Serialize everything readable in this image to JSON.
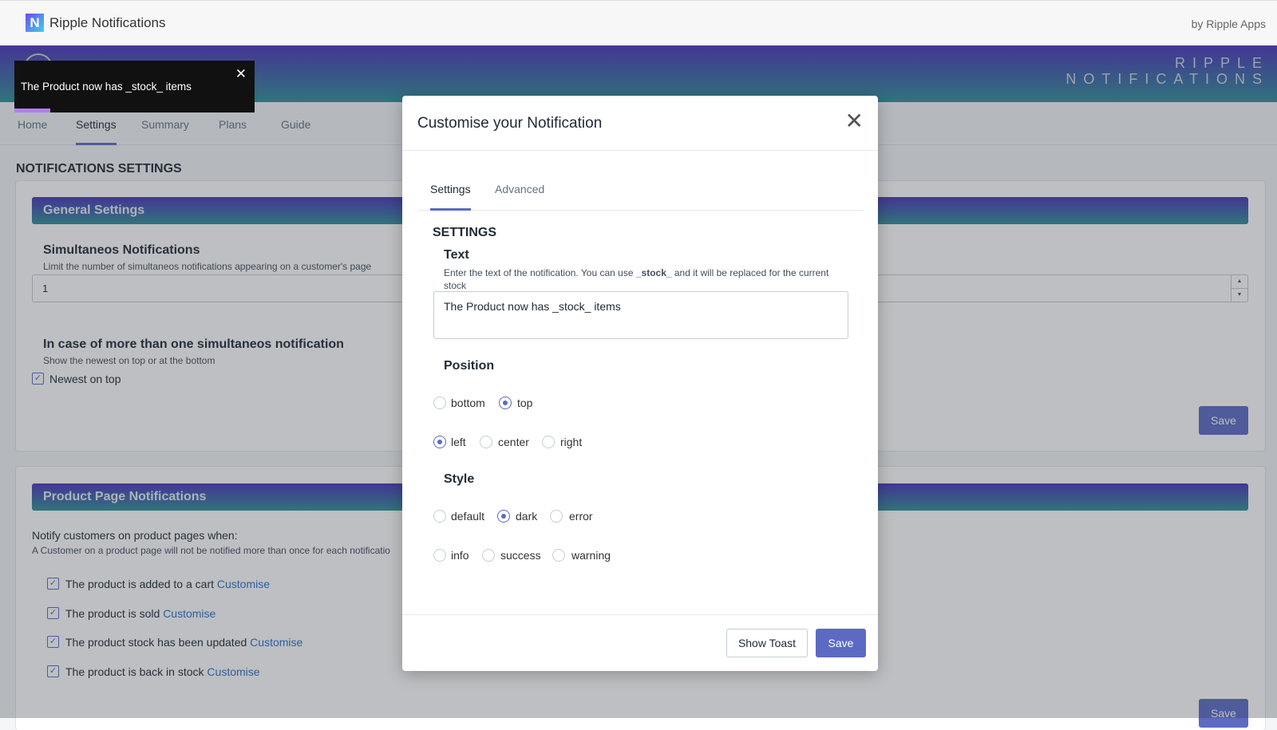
{
  "app": {
    "title": "Ripple Notifications",
    "logo_letter": "N",
    "byline": "by Ripple Apps",
    "brand_line1": "RIPPLE",
    "brand_line2": "NOTIFICATIONS"
  },
  "colors": {
    "accent": "#5c6ac4",
    "gradient_top": "#4a33bd",
    "gradient_bottom": "#2f8f96",
    "toast_bg": "#111111",
    "toast_progress": "#b57cf6",
    "link": "#2c6ecb"
  },
  "toast": {
    "message": "The Product now has _stock_ items",
    "close_icon": "close-icon"
  },
  "nav": {
    "tabs": [
      {
        "label": "Home"
      },
      {
        "label": "Settings",
        "active": true
      },
      {
        "label": "Summary"
      },
      {
        "label": "Plans"
      },
      {
        "label": "Guide"
      }
    ]
  },
  "page": {
    "title": "NOTIFICATIONS SETTINGS"
  },
  "general": {
    "header": "General Settings",
    "simul_title": "Simultaneos Notifications",
    "simul_desc": "Limit the number of simultaneos notifications appearing on a customer's page",
    "simul_value": "1",
    "order_title": "In case of more than one simultaneos notification",
    "order_desc": "Show the newest on top or at the bottom",
    "newest_label": "Newest on top",
    "newest_checked": true,
    "save": "Save"
  },
  "product": {
    "header": "Product Page Notifications",
    "intro": "Notify customers on product pages when:",
    "note": "A Customer on a product page will not be notified more than once for each notificatio",
    "items": [
      {
        "label": "The product is added to a cart",
        "link": "Customise"
      },
      {
        "label": "The product is sold",
        "link": "Customise"
      },
      {
        "label": "The product stock has been updated",
        "link": "Customise"
      },
      {
        "label": "The product is back in stock",
        "link": "Customise"
      }
    ],
    "save": "Save"
  },
  "modal": {
    "title": "Customise your Notification",
    "tabs": [
      {
        "label": "Settings",
        "active": true
      },
      {
        "label": "Advanced"
      }
    ],
    "section": "SETTINGS",
    "text_label": "Text",
    "text_desc_1": "Enter the text of the notification. You can use ",
    "text_desc_bold": "_stock_",
    "text_desc_2": " and it will be replaced for the current stock",
    "text_value": "The Product now has _stock_ items",
    "position_label": "Position",
    "vertical": {
      "options": [
        "bottom",
        "top"
      ],
      "selected": "top"
    },
    "horizontal": {
      "options": [
        "left",
        "center",
        "right"
      ],
      "selected": "left"
    },
    "style_label": "Style",
    "style": {
      "options": [
        "default",
        "dark",
        "error",
        "info",
        "success",
        "warning"
      ],
      "selected": "dark"
    },
    "show_toast": "Show Toast",
    "save": "Save"
  }
}
